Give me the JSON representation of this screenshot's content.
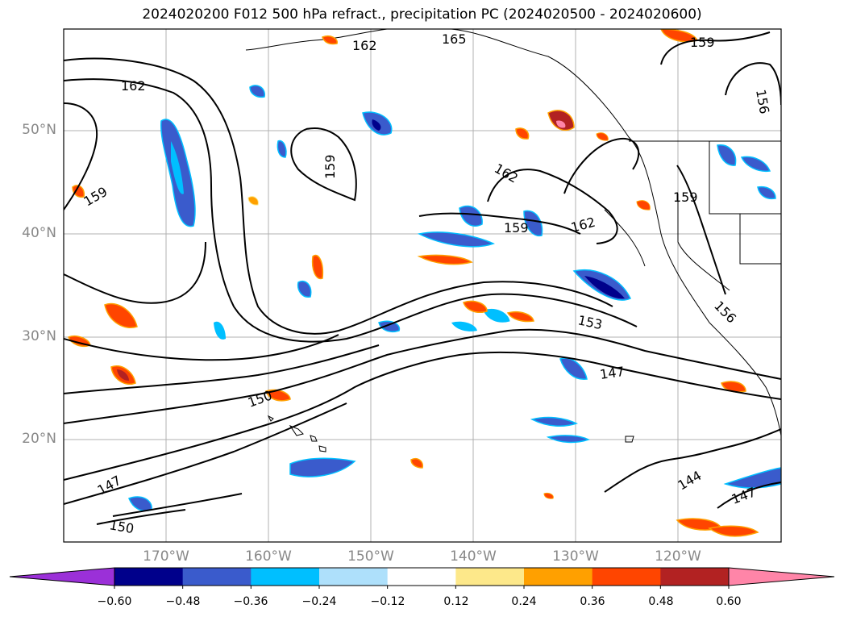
{
  "title": "2024020200 F012 500 hPa refract., precipitation PC (2024020500 - 2024020600)",
  "latitude_labels": [
    "50°N",
    "40°N",
    "30°N",
    "20°N"
  ],
  "longitude_labels": [
    "170°W",
    "160°W",
    "150°W",
    "140°W",
    "130°W",
    "120°W"
  ],
  "contour_labels": [
    "165",
    "162",
    "162",
    "159",
    "159",
    "162",
    "159",
    "162",
    "159",
    "159",
    "156",
    "153",
    "147",
    "150",
    "147",
    "150",
    "144",
    "147",
    "156"
  ],
  "colorbar": {
    "tick_labels": [
      "−0.60",
      "−0.48",
      "−0.36",
      "−0.24",
      "−0.12",
      "0.12",
      "0.24",
      "0.36",
      "0.48",
      "0.60"
    ],
    "colors": [
      "#9b30d8",
      "#00008b",
      "#3a5bcc",
      "#00bfff",
      "#aee0fb",
      "#ffffff",
      "#fde88a",
      "#ffa000",
      "#ff4500",
      "#b22222",
      "#ff85a8"
    ]
  }
}
